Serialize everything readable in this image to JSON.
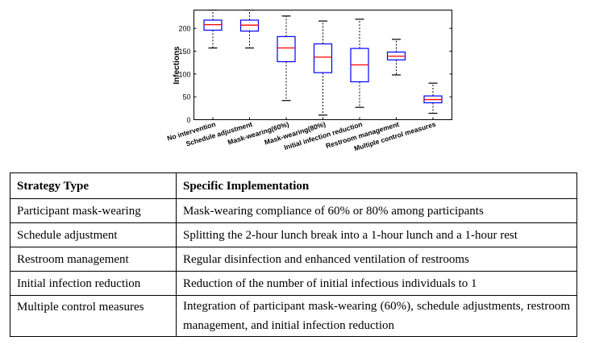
{
  "chart_data": {
    "type": "box",
    "ylabel": "Infections",
    "ylim": [
      0,
      240
    ],
    "yticks": [
      0,
      50,
      100,
      150,
      200
    ],
    "categories": [
      "No intervention",
      "Schedule adjustment",
      "Mask-wearing(60%)",
      "Mask-wearing(80%)",
      "Initial infection reduction",
      "Restroom management",
      "Multiple control measures"
    ],
    "boxes": [
      {
        "whisker_low": 157,
        "q1": 196,
        "median": 208,
        "q3": 218,
        "whisker_high": 240
      },
      {
        "whisker_low": 157,
        "q1": 194,
        "median": 207,
        "q3": 218,
        "whisker_high": 240
      },
      {
        "whisker_low": 42,
        "q1": 127,
        "median": 157,
        "q3": 182,
        "whisker_high": 227
      },
      {
        "whisker_low": 10,
        "q1": 103,
        "median": 137,
        "q3": 166,
        "whisker_high": 216
      },
      {
        "whisker_low": 27,
        "q1": 83,
        "median": 120,
        "q3": 156,
        "whisker_high": 220
      },
      {
        "whisker_low": 98,
        "q1": 131,
        "median": 139,
        "q3": 148,
        "whisker_high": 176
      },
      {
        "whisker_low": 14,
        "q1": 37,
        "median": 44,
        "q3": 52,
        "whisker_high": 80
      }
    ],
    "colors": {
      "box": "#0000ff",
      "median": "#ff0000",
      "whisker": "#000000"
    }
  },
  "table": {
    "headers": [
      "Strategy Type",
      "Specific Implementation"
    ],
    "rows": [
      {
        "type": "Participant mask-wearing",
        "implementation": "Mask-wearing compliance of 60% or 80% among participants"
      },
      {
        "type": "Schedule adjustment",
        "implementation": "Splitting the 2-hour lunch break into a 1-hour lunch and a 1-hour rest"
      },
      {
        "type": "Restroom management",
        "implementation": "Regular disinfection and enhanced ventilation of restrooms"
      },
      {
        "type": "Initial infection reduction",
        "implementation": "Reduction of the number of initial infectious individuals to 1"
      },
      {
        "type": "Multiple control measures",
        "implementation": "Integration of participant mask-wearing (60%), schedule adjustments, restroom management, and initial infection reduction"
      }
    ]
  }
}
